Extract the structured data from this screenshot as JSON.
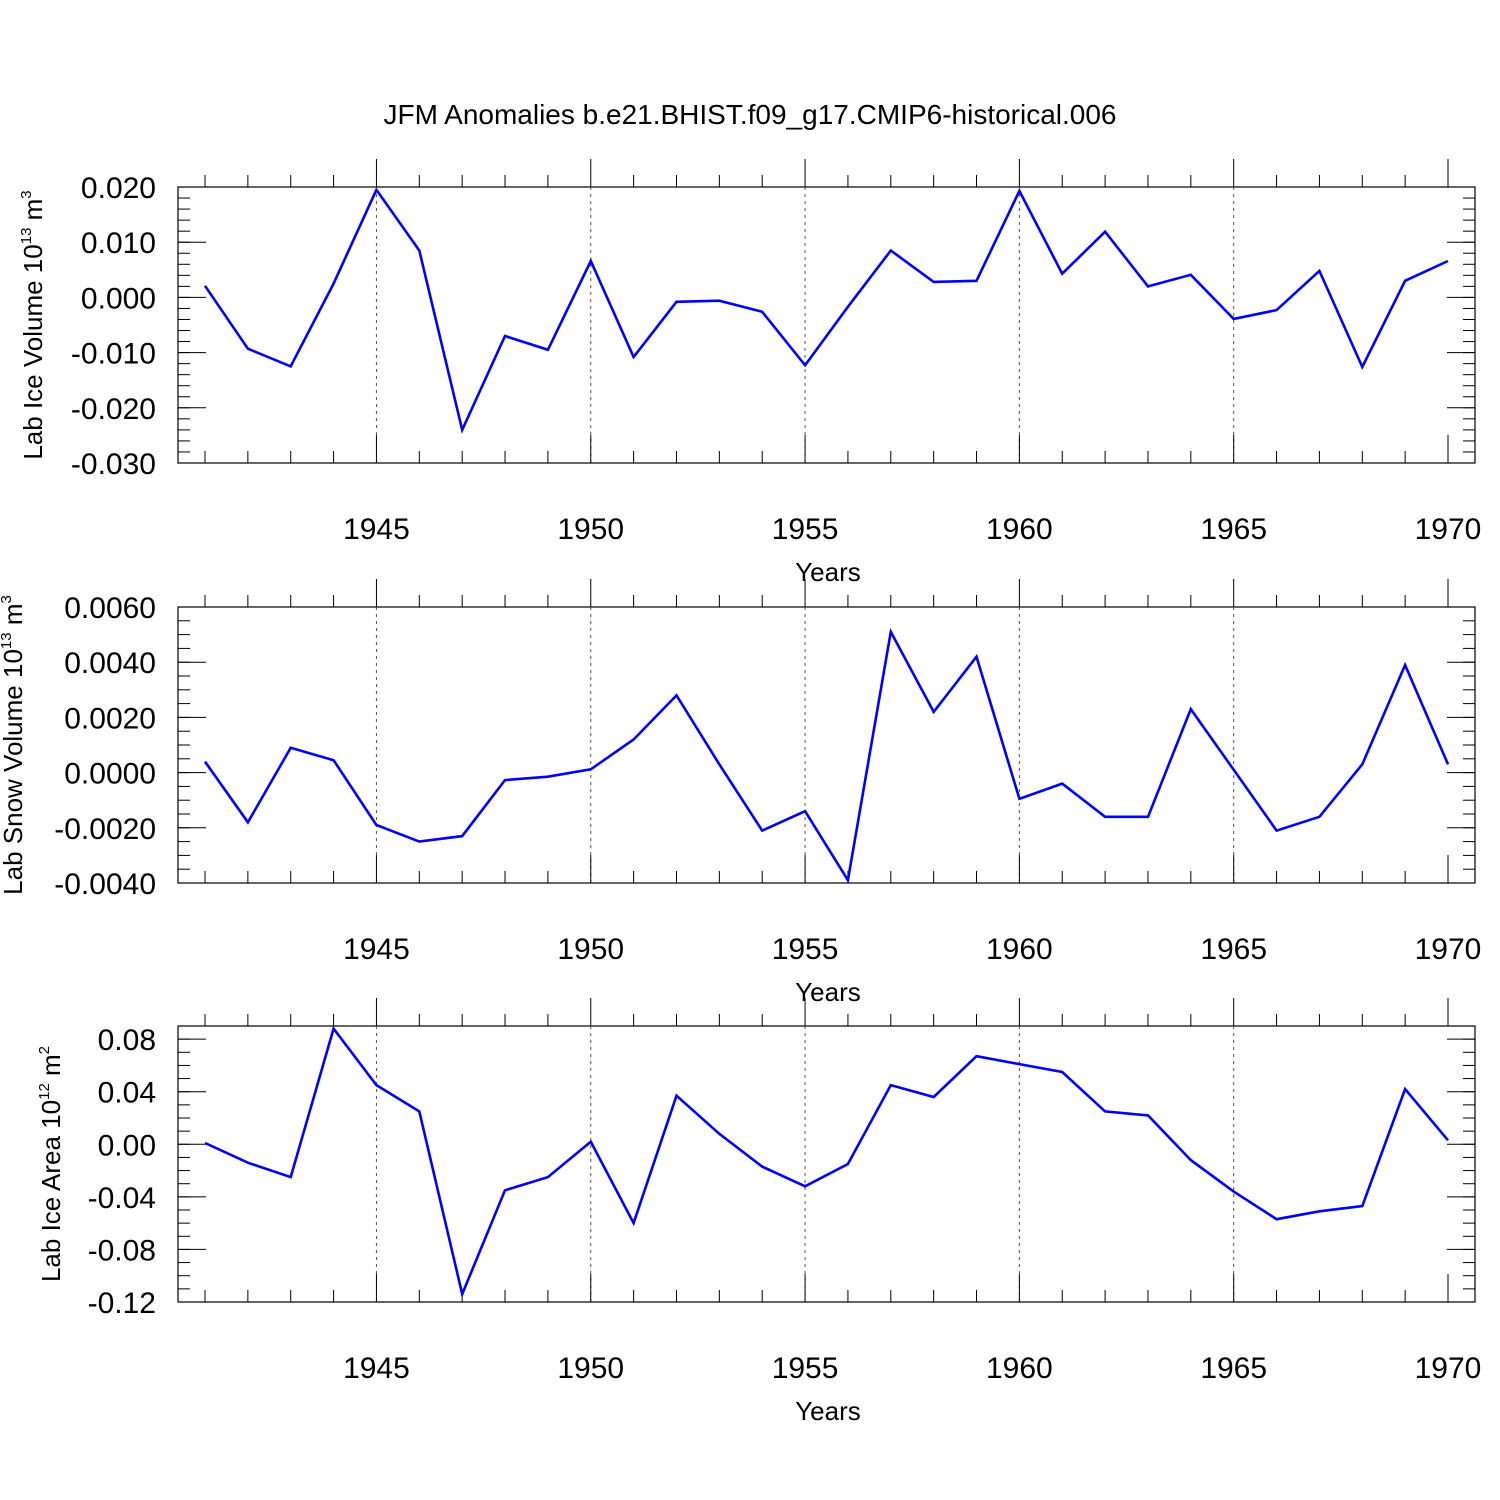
{
  "title": "JFM Anomalies b.e21.BHIST.f09_g17.CMIP6-historical.006",
  "line_color": "#0000ff",
  "chart_data": [
    {
      "type": "line",
      "ylabel": "Lab Ice Volume 10",
      "ylabel_exp": "13",
      "ylabel_unit": " m",
      "ylabel_unit_exp": "3",
      "xlabel": "Years",
      "xlim": [
        1941,
        1970
      ],
      "ylim": [
        -0.03,
        0.02
      ],
      "yticks": [
        -0.03,
        -0.02,
        -0.01,
        0.0,
        0.01,
        0.02
      ],
      "ytick_labels": [
        "-0.030",
        "-0.020",
        "-0.010",
        "0.000",
        "0.010",
        "0.020"
      ],
      "yminor_step": 0.002,
      "xticks": [
        1945,
        1950,
        1955,
        1960,
        1965,
        1970
      ],
      "xtick_labels": [
        "1945",
        "1950",
        "1955",
        "1960",
        "1965",
        "1970"
      ],
      "x": [
        1941,
        1942,
        1943,
        1944,
        1945,
        1946,
        1947,
        1948,
        1949,
        1950,
        1951,
        1952,
        1953,
        1954,
        1955,
        1956,
        1957,
        1958,
        1959,
        1960,
        1961,
        1962,
        1963,
        1964,
        1965,
        1966,
        1967,
        1968,
        1969,
        1970
      ],
      "values": [
        0.0021,
        -0.0093,
        -0.0125,
        0.0025,
        0.0195,
        0.0085,
        -0.024,
        -0.007,
        -0.0095,
        0.0066,
        -0.0108,
        -0.0008,
        -0.0006,
        -0.0026,
        -0.0123,
        -0.0017,
        0.0085,
        0.0028,
        0.003,
        0.0193,
        0.0043,
        0.0119,
        0.002,
        0.0041,
        -0.0039,
        -0.0023,
        0.0048,
        -0.0126,
        0.003,
        0.0066
      ]
    },
    {
      "type": "line",
      "ylabel": "Lab Snow Volume 10",
      "ylabel_exp": "13",
      "ylabel_unit": " m",
      "ylabel_unit_exp": "3",
      "xlabel": "Years",
      "xlim": [
        1941,
        1970
      ],
      "ylim": [
        -0.004,
        0.006
      ],
      "yticks": [
        -0.004,
        -0.002,
        0.0,
        0.002,
        0.004,
        0.006
      ],
      "ytick_labels": [
        "-0.0040",
        "-0.0020",
        "0.0000",
        "0.0020",
        "0.0040",
        "0.0060"
      ],
      "yminor_step": 0.0005,
      "xticks": [
        1945,
        1950,
        1955,
        1960,
        1965,
        1970
      ],
      "xtick_labels": [
        "1945",
        "1950",
        "1955",
        "1960",
        "1965",
        "1970"
      ],
      "x": [
        1941,
        1942,
        1943,
        1944,
        1945,
        1946,
        1947,
        1948,
        1949,
        1950,
        1951,
        1952,
        1953,
        1954,
        1955,
        1956,
        1957,
        1958,
        1959,
        1960,
        1961,
        1962,
        1963,
        1964,
        1965,
        1966,
        1967,
        1968,
        1969,
        1970
      ],
      "values": [
        0.0004,
        -0.0018,
        0.0009,
        0.00045,
        -0.0019,
        -0.0025,
        -0.0023,
        -0.00027,
        -0.00015,
        0.00012,
        0.0012,
        0.0028,
        0.0003,
        -0.0021,
        -0.0014,
        -0.0039,
        0.0051,
        0.0022,
        0.0042,
        -0.00095,
        -0.0004,
        -0.0016,
        -0.0016,
        0.0023,
        0.0001,
        -0.0021,
        -0.0016,
        0.0003,
        0.0039,
        0.0003
      ]
    },
    {
      "type": "line",
      "ylabel": "Lab Ice Area 10",
      "ylabel_exp": "12",
      "ylabel_unit": " m",
      "ylabel_unit_exp": "2",
      "xlabel": "Years",
      "xlim": [
        1941,
        1970
      ],
      "ylim": [
        -0.12,
        0.09
      ],
      "yticks": [
        -0.12,
        -0.08,
        -0.04,
        0.0,
        0.04,
        0.08
      ],
      "ytick_labels": [
        "-0.12",
        "-0.08",
        "-0.04",
        "0.00",
        "0.04",
        "0.08"
      ],
      "yminor_step": 0.01,
      "xticks": [
        1945,
        1950,
        1955,
        1960,
        1965,
        1970
      ],
      "xtick_labels": [
        "1945",
        "1950",
        "1955",
        "1960",
        "1965",
        "1970"
      ],
      "x": [
        1941,
        1942,
        1943,
        1944,
        1945,
        1946,
        1947,
        1948,
        1949,
        1950,
        1951,
        1952,
        1953,
        1954,
        1955,
        1956,
        1957,
        1958,
        1959,
        1960,
        1961,
        1962,
        1963,
        1964,
        1965,
        1966,
        1967,
        1968,
        1969,
        1970
      ],
      "values": [
        0.001,
        -0.014,
        -0.025,
        0.088,
        0.045,
        0.025,
        -0.114,
        -0.035,
        -0.025,
        0.002,
        -0.06,
        0.037,
        0.008,
        -0.017,
        -0.032,
        -0.015,
        0.045,
        0.036,
        0.067,
        0.061,
        0.055,
        0.025,
        0.022,
        -0.012,
        -0.036,
        -0.057,
        -0.051,
        -0.047,
        0.042,
        0.003
      ]
    }
  ]
}
